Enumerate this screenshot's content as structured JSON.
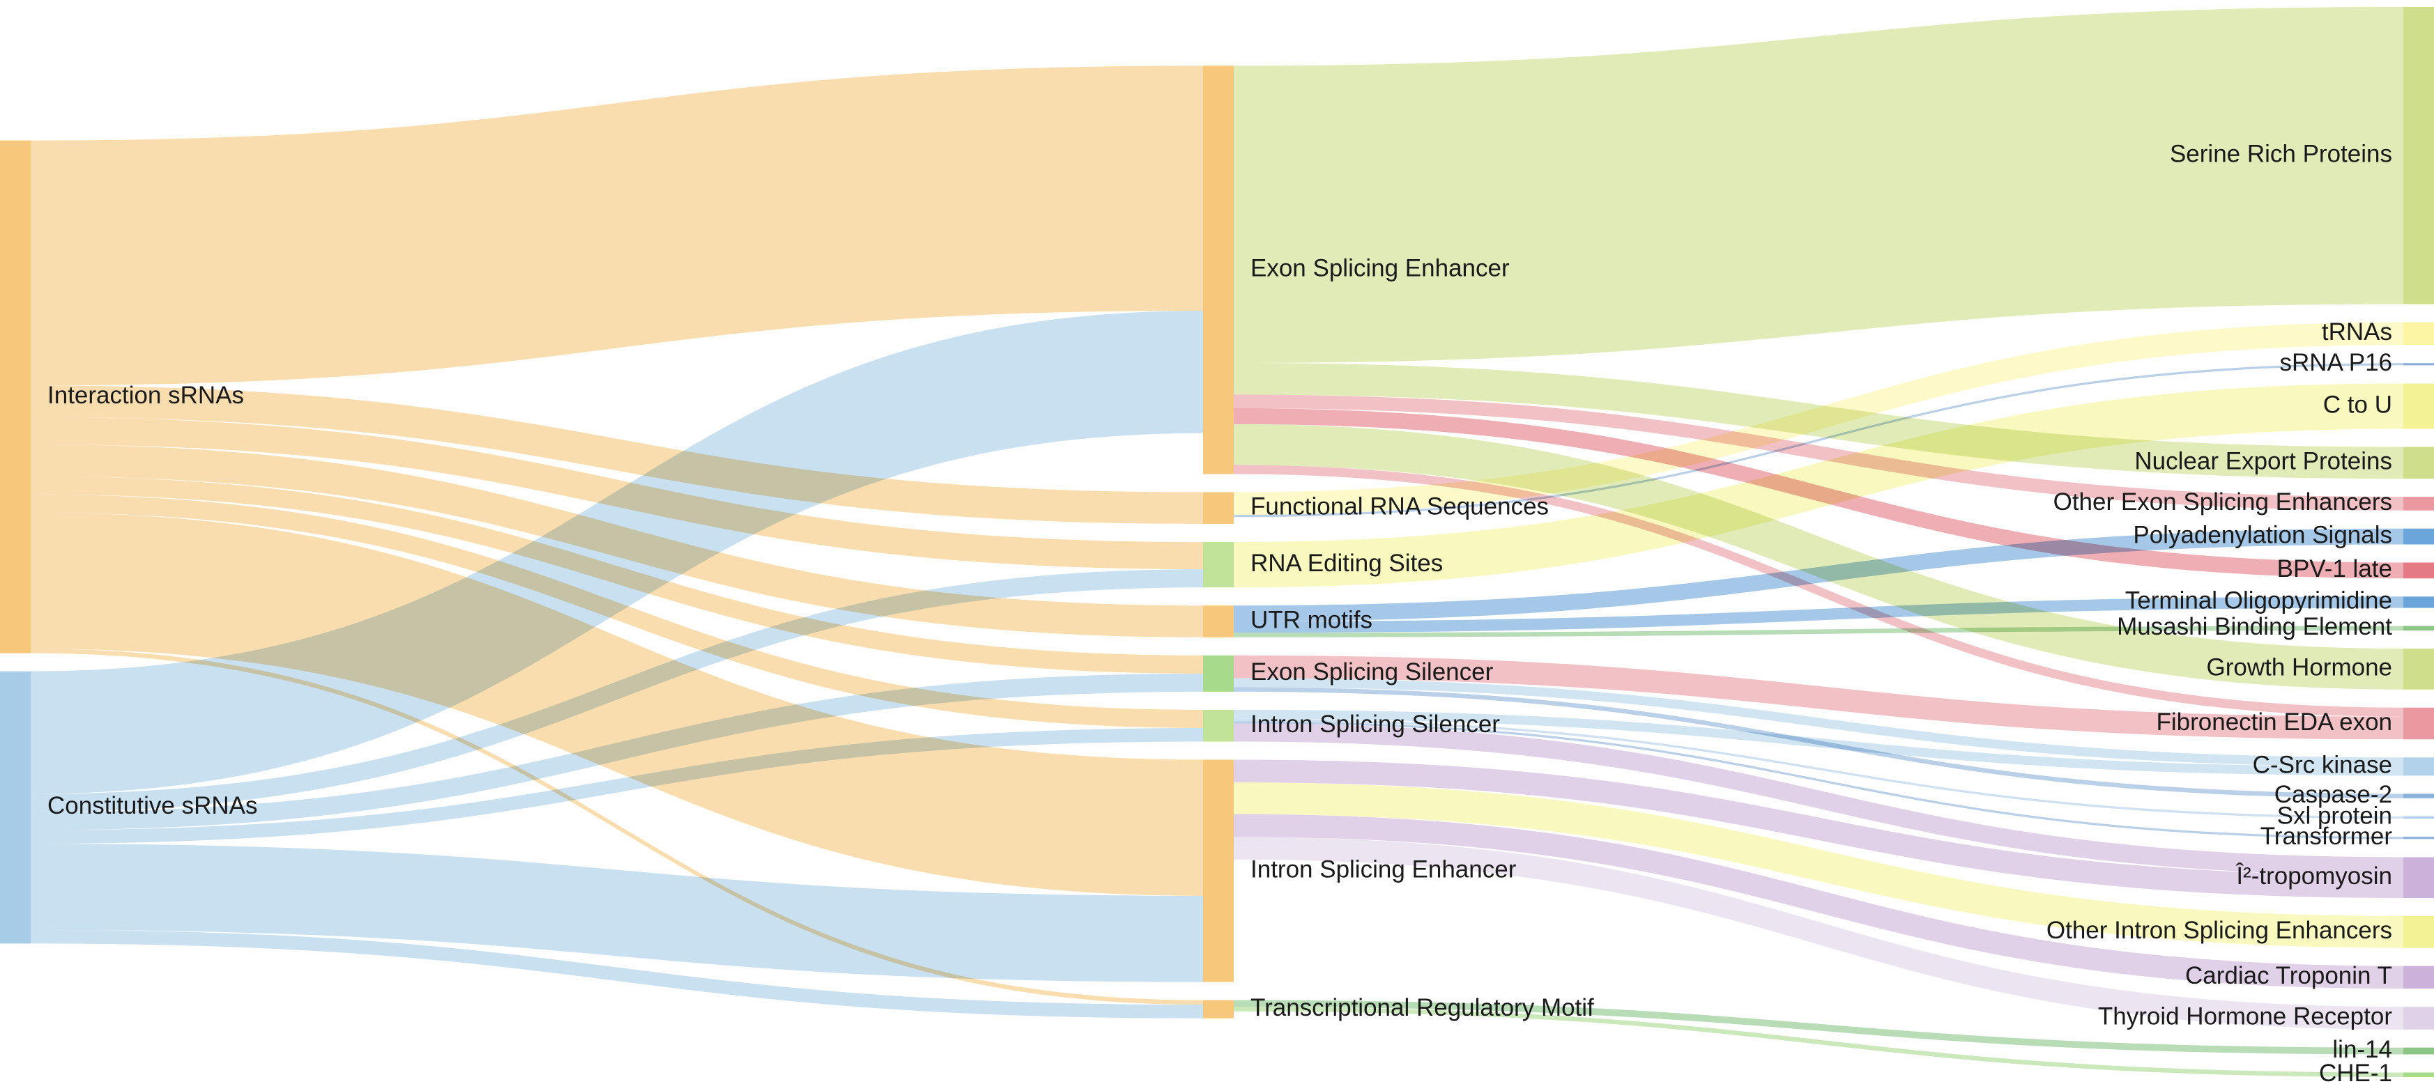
{
  "diagram": {
    "type": "sankey",
    "columns": [
      [
        "interaction",
        "constitutive"
      ],
      [
        "ese",
        "func_rna",
        "rna_edit",
        "utr",
        "ess",
        "iss",
        "ise",
        "trm"
      ],
      [
        "serine",
        "trnas",
        "srna_p16",
        "c_to_u",
        "nep",
        "other_ese",
        "polya",
        "bpv",
        "top",
        "musashi",
        "gh",
        "fibro",
        "csrc",
        "casp2",
        "sxl",
        "transformer",
        "tropomyosin",
        "other_ise",
        "ctnt",
        "thr",
        "lin14",
        "che1"
      ]
    ],
    "nodes": [
      {
        "id": "interaction",
        "label": "Interaction sRNAs",
        "color": "#f6c16e"
      },
      {
        "id": "constitutive",
        "label": "Constitutive sRNAs",
        "color": "#9cc7e6"
      },
      {
        "id": "ese",
        "label": "Exon Splicing Enhancer",
        "color": "#f6c16e"
      },
      {
        "id": "func_rna",
        "label": "Functional RNA Sequences",
        "color": "#f6c16e"
      },
      {
        "id": "rna_edit",
        "label": "RNA Editing Sites",
        "color": "#b9e08d"
      },
      {
        "id": "utr",
        "label": "UTR motifs",
        "color": "#f6c16e"
      },
      {
        "id": "ess",
        "label": "Exon Splicing Silencer",
        "color": "#9fd67f"
      },
      {
        "id": "iss",
        "label": "Intron Splicing Silencer",
        "color": "#b9e08d"
      },
      {
        "id": "ise",
        "label": "Intron Splicing Enhancer",
        "color": "#f6c16e"
      },
      {
        "id": "trm",
        "label": "Transcriptional Regulatory Motif",
        "color": "#f6c16e"
      },
      {
        "id": "serine",
        "label": "Serine Rich Proteins",
        "color": "#c9da7d"
      },
      {
        "id": "trnas",
        "label": "tRNAs",
        "color": "#fbf49a"
      },
      {
        "id": "srna_p16",
        "label": "sRNA P16",
        "color": "#7fa9d6"
      },
      {
        "id": "c_to_u",
        "label": "C to U",
        "color": "#f2f28a"
      },
      {
        "id": "nep",
        "label": "Nuclear Export Proteins",
        "color": "#c9da7d"
      },
      {
        "id": "other_ese",
        "label": "Other Exon Splicing Enhancers",
        "color": "#e88e96"
      },
      {
        "id": "polya",
        "label": "Polyadenylation Signals",
        "color": "#5b9bd5"
      },
      {
        "id": "bpv",
        "label": "BPV-1 late",
        "color": "#e06c77"
      },
      {
        "id": "top",
        "label": "Terminal Oligopyrimidine",
        "color": "#5b9bd5"
      },
      {
        "id": "musashi",
        "label": "Musashi Binding Element",
        "color": "#7ec07a"
      },
      {
        "id": "gh",
        "label": "Growth Hormone",
        "color": "#c9da7d"
      },
      {
        "id": "fibro",
        "label": "Fibronectin EDA exon",
        "color": "#e88e96"
      },
      {
        "id": "csrc",
        "label": "C-Src kinase",
        "color": "#a9cde8"
      },
      {
        "id": "casp2",
        "label": "Caspase-2",
        "color": "#7fa9d6"
      },
      {
        "id": "sxl",
        "label": "Sxl protein",
        "color": "#a8c6e8"
      },
      {
        "id": "transformer",
        "label": "Transformer",
        "color": "#7fa9d6"
      },
      {
        "id": "tropomyosin",
        "label": "Î²-tropomyosin",
        "color": "#c7a9d6"
      },
      {
        "id": "other_ise",
        "label": "Other Intron Splicing Enhancers",
        "color": "#f2f28a"
      },
      {
        "id": "ctnt",
        "label": "Cardiac Troponin T",
        "color": "#c7a9d6"
      },
      {
        "id": "thr",
        "label": "Thyroid Hormone Receptor",
        "color": "#dccde6"
      },
      {
        "id": "lin14",
        "label": "lin-14",
        "color": "#7ec07a"
      },
      {
        "id": "che1",
        "label": "CHE-1",
        "color": "#9fd67f"
      }
    ],
    "links": [
      {
        "source": "interaction",
        "target": "ese",
        "value": 108
      },
      {
        "source": "interaction",
        "target": "func_rna",
        "value": 14
      },
      {
        "source": "interaction",
        "target": "rna_edit",
        "value": 12
      },
      {
        "source": "interaction",
        "target": "utr",
        "value": 14
      },
      {
        "source": "interaction",
        "target": "ess",
        "value": 8
      },
      {
        "source": "interaction",
        "target": "iss",
        "value": 8
      },
      {
        "source": "interaction",
        "target": "ise",
        "value": 60
      },
      {
        "source": "interaction",
        "target": "trm",
        "value": 2
      },
      {
        "source": "constitutive",
        "target": "ese",
        "value": 54
      },
      {
        "source": "constitutive",
        "target": "rna_edit",
        "value": 8
      },
      {
        "source": "constitutive",
        "target": "ess",
        "value": 8
      },
      {
        "source": "constitutive",
        "target": "iss",
        "value": 6
      },
      {
        "source": "constitutive",
        "target": "ise",
        "value": 38
      },
      {
        "source": "constitutive",
        "target": "trm",
        "value": 6
      },
      {
        "source": "ese",
        "target": "serine",
        "value": 131
      },
      {
        "source": "ese",
        "target": "nep",
        "value": 14
      },
      {
        "source": "ese",
        "target": "other_ese",
        "value": 6
      },
      {
        "source": "ese",
        "target": "bpv",
        "value": 7
      },
      {
        "source": "ese",
        "target": "gh",
        "value": 18
      },
      {
        "source": "ese",
        "target": "fibro",
        "value": 4
      },
      {
        "source": "func_rna",
        "target": "trnas",
        "value": 10
      },
      {
        "source": "func_rna",
        "target": "srna_p16",
        "value": 1
      },
      {
        "source": "rna_edit",
        "target": "c_to_u",
        "value": 20
      },
      {
        "source": "utr",
        "target": "polya",
        "value": 7
      },
      {
        "source": "utr",
        "target": "top",
        "value": 5
      },
      {
        "source": "utr",
        "target": "musashi",
        "value": 2
      },
      {
        "source": "ess",
        "target": "fibro",
        "value": 10
      },
      {
        "source": "ess",
        "target": "csrc",
        "value": 4
      },
      {
        "source": "ess",
        "target": "casp2",
        "value": 2
      },
      {
        "source": "iss",
        "target": "sxl",
        "value": 1
      },
      {
        "source": "iss",
        "target": "transformer",
        "value": 1
      },
      {
        "source": "iss",
        "target": "csrc",
        "value": 4
      },
      {
        "source": "iss",
        "target": "tropomyosin",
        "value": 8
      },
      {
        "source": "ise",
        "target": "tropomyosin",
        "value": 10
      },
      {
        "source": "ise",
        "target": "other_ise",
        "value": 14
      },
      {
        "source": "ise",
        "target": "ctnt",
        "value": 10
      },
      {
        "source": "ise",
        "target": "thr",
        "value": 10
      },
      {
        "source": "trm",
        "target": "lin14",
        "value": 3
      },
      {
        "source": "trm",
        "target": "che1",
        "value": 2
      }
    ]
  }
}
